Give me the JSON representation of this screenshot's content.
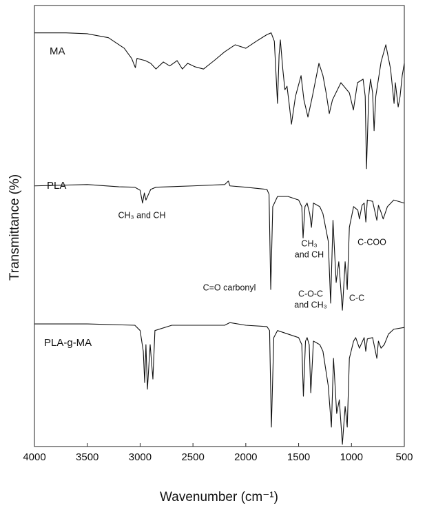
{
  "chart_data": {
    "type": "line",
    "xlabel": "Wavenumber (cm⁻¹)",
    "ylabel": "Transmittance (%)",
    "xlim": [
      4000,
      500
    ],
    "xticks": [
      4000,
      3500,
      3000,
      2500,
      2000,
      1500,
      1000,
      500
    ],
    "ylim": [
      0,
      100
    ],
    "series": [
      {
        "name": "MA",
        "color": "#111111",
        "x": [
          4000,
          3700,
          3500,
          3300,
          3150,
          3080,
          3045,
          3030,
          2950,
          2900,
          2850,
          2780,
          2720,
          2650,
          2600,
          2550,
          2480,
          2400,
          2300,
          2200,
          2100,
          2000,
          1900,
          1800,
          1760,
          1730,
          1700,
          1685,
          1673,
          1650,
          1630,
          1610,
          1590,
          1568,
          1530,
          1477,
          1450,
          1412,
          1370,
          1308,
          1270,
          1240,
          1210,
          1180,
          1100,
          1020,
          982,
          943,
          890,
          870,
          858,
          837,
          820,
          800,
          786,
          770,
          720,
          675,
          630,
          597,
          585,
          558,
          540,
          520,
          500
        ],
        "values": [
          93.8,
          93.8,
          93.6,
          92.7,
          90.3,
          88.0,
          85.9,
          88.0,
          87.5,
          86.9,
          85.6,
          87.2,
          86.3,
          87.5,
          85.6,
          86.9,
          86.1,
          85.6,
          87.5,
          89.5,
          91.1,
          90.3,
          91.9,
          93.4,
          93.8,
          91.9,
          77.8,
          88.8,
          92.2,
          85.6,
          80.9,
          81.7,
          77.8,
          73.1,
          79.4,
          84.1,
          78.6,
          74.7,
          79.4,
          86.9,
          84.1,
          80.2,
          75.5,
          78.6,
          82.5,
          80.2,
          76.3,
          82.5,
          83.3,
          79.4,
          63.0,
          79.4,
          83.3,
          80.2,
          71.6,
          79.4,
          87.2,
          91.1,
          85.6,
          77.8,
          82.5,
          77.0,
          79.4,
          84.1,
          86.9
        ]
      },
      {
        "name": "PLA",
        "color": "#111111",
        "x": [
          4000,
          3500,
          3200,
          3050,
          3000,
          2977,
          2960,
          2945,
          2900,
          2850,
          2500,
          2200,
          2165,
          2150,
          2000,
          1800,
          1780,
          1764,
          1745,
          1700,
          1600,
          1500,
          1470,
          1458,
          1440,
          1420,
          1395,
          1379,
          1360,
          1300,
          1270,
          1220,
          1197,
          1175,
          1145,
          1120,
          1086,
          1060,
          1040,
          1020,
          980,
          940,
          925,
          900,
          880,
          864,
          850,
          800,
          760,
          745,
          720,
          700,
          660,
          600,
          500
        ],
        "values": [
          59.1,
          59.4,
          58.9,
          58.8,
          58.1,
          55.2,
          57.5,
          55.9,
          58.3,
          58.8,
          59.1,
          59.4,
          60.2,
          59.1,
          58.8,
          58.3,
          57.2,
          35.6,
          54.4,
          56.7,
          56.7,
          55.9,
          54.4,
          47.3,
          54.4,
          55.2,
          52.8,
          49.7,
          55.2,
          54.4,
          52.8,
          46.6,
          32.5,
          51.3,
          37.2,
          41.9,
          30.9,
          41.9,
          35.6,
          49.7,
          54.4,
          53.6,
          51.6,
          54.7,
          55.2,
          50.9,
          55.9,
          55.6,
          51.3,
          54.7,
          53.1,
          51.6,
          54.4,
          55.9,
          55.2
        ]
      },
      {
        "name": "PLA-g-MA",
        "color": "#111111",
        "x": [
          4000,
          3500,
          3050,
          3000,
          2970,
          2957,
          2945,
          2931,
          2905,
          2879,
          2860,
          2700,
          2200,
          2150,
          2000,
          1800,
          1775,
          1758,
          1735,
          1700,
          1500,
          1470,
          1455,
          1435,
          1420,
          1400,
          1385,
          1360,
          1300,
          1270,
          1220,
          1190,
          1170,
          1140,
          1115,
          1086,
          1060,
          1040,
          1020,
          980,
          960,
          925,
          880,
          865,
          850,
          800,
          760,
          745,
          720,
          690,
          650,
          600,
          500
        ],
        "values": [
          27.8,
          27.8,
          27.5,
          26.3,
          21.6,
          14.5,
          23.1,
          13.0,
          23.1,
          15.3,
          26.3,
          27.5,
          27.5,
          28.1,
          27.5,
          27.2,
          26.3,
          4.4,
          24.7,
          26.3,
          24.7,
          23.1,
          11.4,
          23.9,
          24.7,
          23.1,
          12.2,
          23.9,
          23.1,
          21.6,
          13.8,
          4.4,
          20.0,
          7.5,
          10.6,
          0.5,
          9.1,
          4.4,
          20.0,
          23.9,
          24.7,
          22.3,
          24.7,
          21.6,
          24.4,
          24.7,
          20.0,
          23.9,
          22.3,
          23.1,
          25.5,
          26.6,
          27.0
        ]
      }
    ],
    "annotations": [
      {
        "lines": [
          "CH₃ and CH"
        ]
      },
      {
        "lines": [
          "CH₃",
          "and CH"
        ]
      },
      {
        "lines": [
          "C-COO"
        ]
      },
      {
        "lines": [
          "C=O carbonyl"
        ]
      },
      {
        "lines": [
          "C-O-C",
          "and CH₃"
        ]
      },
      {
        "lines": [
          "C-C"
        ]
      }
    ]
  }
}
